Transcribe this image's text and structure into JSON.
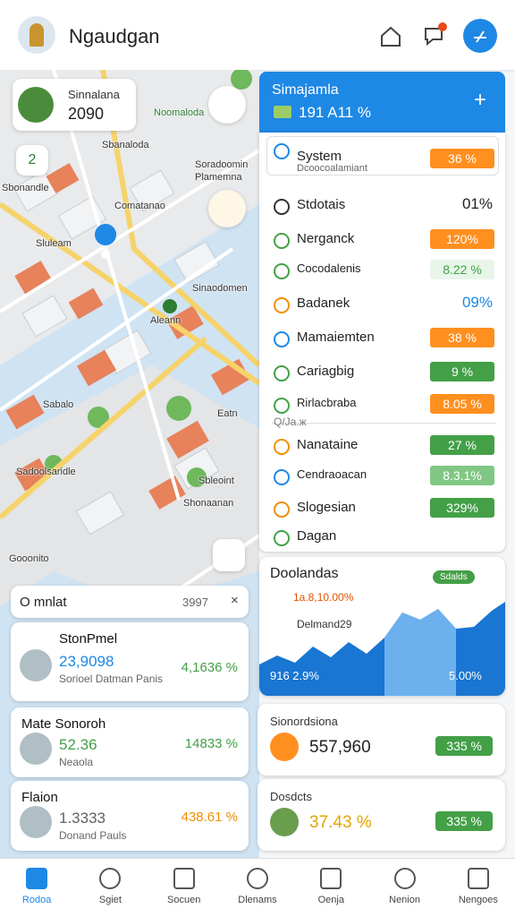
{
  "header": {
    "title": "Ngaudgan"
  },
  "map": {
    "profile": {
      "name": "Sinnalana",
      "value": "2090"
    },
    "badge": "2",
    "labels": [
      "Noomaloda",
      "Sbanaloda",
      "Soradoomin",
      "Plamemna",
      "Sbonandle",
      "Comatanao",
      "Sluleam",
      "Sinaodomen",
      "Aleann",
      "Sabalo",
      "Eatn",
      "Sadoolsaridle",
      "Sbleoint",
      "Shonaanan",
      "Gooonito"
    ]
  },
  "panel": {
    "title": "Simajamla",
    "value": "191 A11 %",
    "rows": [
      {
        "label": "System",
        "sub": "Dcoocoalamiant",
        "value": "36 %"
      },
      {
        "label": "Stdotais",
        "value": "01%"
      },
      {
        "label": "Nerganck",
        "value": "120%"
      },
      {
        "label": "Cocodalenis",
        "value": "8.22 %"
      },
      {
        "label": "Badanek",
        "value": "09%"
      },
      {
        "label": "Mamaiemten",
        "value": "38 %"
      },
      {
        "label": "Cariagbig",
        "value": "9 %"
      },
      {
        "label": "Rirlacbraba",
        "value": "8.05 %"
      },
      {
        "label": "Q/Ja.ж"
      },
      {
        "label": "Nanataine",
        "value": "27 %"
      },
      {
        "label": "Cendraoacan",
        "value": "8.3.1%"
      },
      {
        "label": "Slogesian",
        "value": "329%"
      },
      {
        "label": "Dagan"
      }
    ]
  },
  "chart_card": {
    "title": "Doolandas",
    "badge": "Sdalds",
    "line1": "1a.8,10.00%",
    "line2": "Delmand29",
    "left": "916 2.9%",
    "right": "5.00%"
  },
  "search": {
    "text": "O mnlat",
    "value": "3997"
  },
  "cards": [
    {
      "title": "StonPmel",
      "value": "23,9098",
      "sub": "Sorioel Datman Panis",
      "pct": "4,1636 %"
    },
    {
      "title": "Mate Sonoroh",
      "value": "52.36",
      "sub": "Neaola",
      "pct": "14833 %"
    },
    {
      "title": "Flaion",
      "value": "1.3333",
      "sub": "Donand Pauls",
      "pct": "438.61 %"
    }
  ],
  "stats": [
    {
      "title": "Sionordsiona",
      "value": "557,960",
      "pct": "335 %"
    },
    {
      "title": "Dosdcts",
      "value": "37.43 %",
      "pct": "335 %"
    }
  ],
  "nav": [
    "Rodoa",
    "Sgiet",
    "Socuen",
    "Dlenams",
    "Oenja",
    "Nenion",
    "Nengoes"
  ]
}
